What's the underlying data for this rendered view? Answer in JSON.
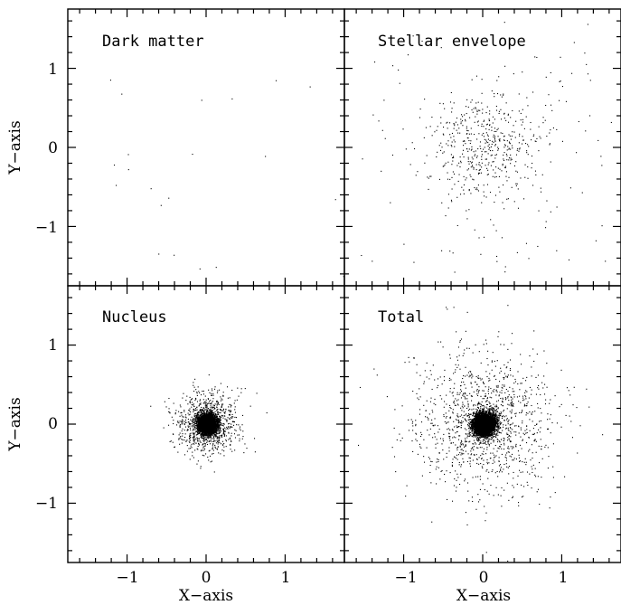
{
  "chart_data": [
    {
      "type": "scatter",
      "panel": "top-left",
      "title": "Dark matter",
      "xlim": [
        -1.75,
        1.75
      ],
      "ylim": [
        -1.75,
        1.75
      ],
      "x_ticks": [
        "−1",
        "0",
        "1"
      ],
      "y_ticks": [
        "1",
        "0",
        "−1"
      ],
      "xlabel": "",
      "ylabel": "Y−axis",
      "distribution": {
        "n_points": 40,
        "core_fraction": 0.0,
        "core_sigma": 0.0,
        "halo_sigma": 1.4
      }
    },
    {
      "type": "scatter",
      "panel": "top-right",
      "title": "Stellar envelope",
      "xlim": [
        -1.75,
        1.75
      ],
      "ylim": [
        -1.75,
        1.75
      ],
      "x_ticks": [
        "−1",
        "0",
        "1"
      ],
      "y_ticks": [
        "1",
        "0",
        "−1"
      ],
      "xlabel": "",
      "ylabel": "",
      "distribution": {
        "n_points": 650,
        "core_fraction": 0.65,
        "core_sigma": 0.32,
        "halo_sigma": 0.95
      }
    },
    {
      "type": "scatter",
      "panel": "bottom-left",
      "title": "Nucleus",
      "xlim": [
        -1.75,
        1.75
      ],
      "ylim": [
        -1.75,
        1.75
      ],
      "x_ticks": [
        "−1",
        "0",
        "1"
      ],
      "y_ticks": [
        "1",
        "0",
        "−1"
      ],
      "xlabel": "X−axis",
      "ylabel": "Y−axis",
      "distribution": {
        "n_points": 5200,
        "core_fraction": 0.82,
        "core_sigma": 0.06,
        "halo_sigma": 0.2
      }
    },
    {
      "type": "scatter",
      "panel": "bottom-right",
      "title": "Total",
      "xlim": [
        -1.75,
        1.75
      ],
      "ylim": [
        -1.75,
        1.75
      ],
      "x_ticks": [
        "−1",
        "0",
        "1"
      ],
      "y_ticks": [
        "1",
        "0",
        "−1"
      ],
      "xlabel": "X−axis",
      "ylabel": "",
      "distribution": {
        "n_points": 5900,
        "core_fraction": 0.78,
        "core_sigma": 0.07,
        "halo_sigma": 0.45
      }
    }
  ]
}
